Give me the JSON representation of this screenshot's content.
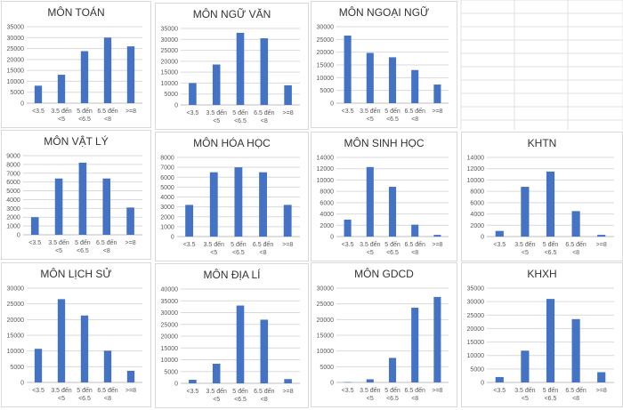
{
  "colors": {
    "bar": "#4472C4",
    "grid": "#d9d9d9",
    "axis": "#bfbfbf",
    "text": "#595959",
    "title": "#333333",
    "cell_grid": "#e2e2e2"
  },
  "categories": [
    "<3.5",
    "3.5 đến <5",
    "5 đến <6.5",
    "6.5 đến <8",
    ">=8"
  ],
  "chart_data": [
    {
      "type": "bar",
      "title": "MÔN TOÁN",
      "ylim": [
        0,
        35000
      ],
      "yticks": [
        0,
        5000,
        10000,
        15000,
        20000,
        25000,
        30000,
        35000
      ],
      "values": [
        8000,
        13000,
        23800,
        30000,
        26000
      ]
    },
    {
      "type": "bar",
      "title": "MÔN NGỮ VĂN",
      "ylim": [
        0,
        35000
      ],
      "yticks": [
        0,
        5000,
        10000,
        15000,
        20000,
        25000,
        30000,
        35000
      ],
      "values": [
        10000,
        18500,
        33000,
        30500,
        9000
      ]
    },
    {
      "type": "bar",
      "title": "MÔN NGOẠI NGỮ",
      "ylim": [
        0,
        30000
      ],
      "yticks": [
        0,
        5000,
        10000,
        15000,
        20000,
        25000,
        30000
      ],
      "values": [
        26500,
        19700,
        18000,
        13000,
        7300
      ]
    },
    {
      "type": "bar",
      "title": "MÔN VẬT LÝ",
      "ylim": [
        0,
        9000
      ],
      "yticks": [
        0,
        1000,
        2000,
        3000,
        4000,
        5000,
        6000,
        7000,
        8000,
        9000
      ],
      "values": [
        2000,
        6400,
        8200,
        6400,
        3100
      ]
    },
    {
      "type": "bar",
      "title": "MÔN HÓA HỌC",
      "ylim": [
        0,
        8000
      ],
      "yticks": [
        0,
        1000,
        2000,
        3000,
        4000,
        5000,
        6000,
        7000,
        8000
      ],
      "values": [
        3200,
        6500,
        7000,
        6500,
        3200
      ]
    },
    {
      "type": "bar",
      "title": "MÔN SINH HỌC",
      "ylim": [
        0,
        14000
      ],
      "yticks": [
        0,
        2000,
        4000,
        6000,
        8000,
        10000,
        12000,
        14000
      ],
      "values": [
        3000,
        12300,
        8800,
        2100,
        300
      ]
    },
    {
      "type": "bar",
      "title": "KHTN",
      "ylim": [
        0,
        14000
      ],
      "yticks": [
        0,
        2000,
        4000,
        6000,
        8000,
        10000,
        12000,
        14000
      ],
      "values": [
        1000,
        8800,
        11500,
        4500,
        300
      ]
    },
    {
      "type": "bar",
      "title": "MÔN LỊCH SỬ",
      "ylim": [
        0,
        30000
      ],
      "yticks": [
        0,
        5000,
        10000,
        15000,
        20000,
        25000,
        30000
      ],
      "values": [
        10700,
        26500,
        21300,
        10100,
        3700
      ]
    },
    {
      "type": "bar",
      "title": "MÔN ĐỊA LÍ",
      "ylim": [
        0,
        40000
      ],
      "yticks": [
        0,
        5000,
        10000,
        15000,
        20000,
        25000,
        30000,
        35000,
        40000
      ],
      "values": [
        1500,
        8300,
        33000,
        27000,
        1800
      ]
    },
    {
      "type": "bar",
      "title": "MÔN GDCD",
      "ylim": [
        0,
        30000
      ],
      "yticks": [
        0,
        5000,
        10000,
        15000,
        20000,
        25000,
        30000
      ],
      "values": [
        100,
        1000,
        7800,
        23800,
        27200
      ]
    },
    {
      "type": "bar",
      "title": "KHXH",
      "ylim": [
        0,
        35000
      ],
      "yticks": [
        0,
        5000,
        10000,
        15000,
        20000,
        25000,
        30000,
        35000
      ],
      "values": [
        2000,
        11800,
        31000,
        23500,
        3800
      ]
    }
  ]
}
